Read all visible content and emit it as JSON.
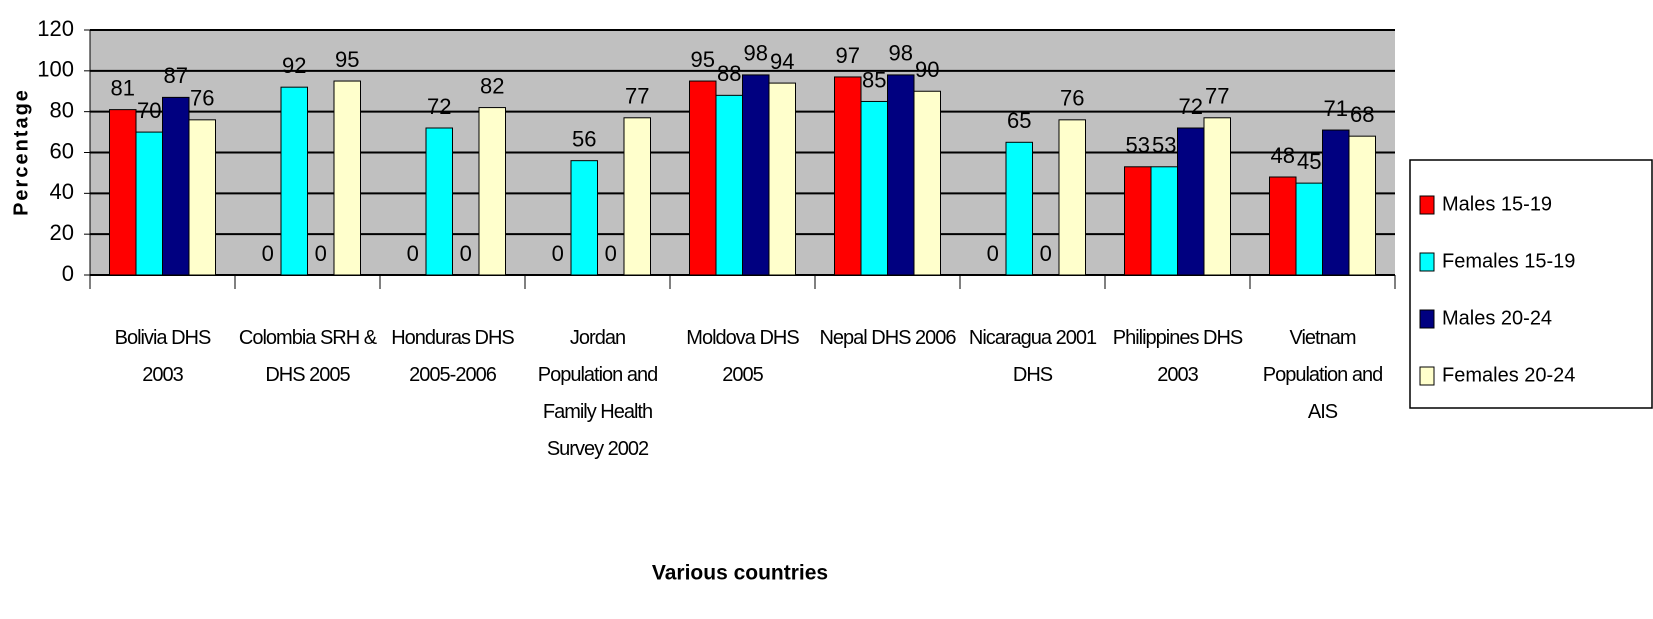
{
  "chart_data": {
    "type": "bar",
    "categories": [
      "Bolivia DHS 2003",
      "Colombia SRH & DHS 2005",
      "Honduras DHS 2005-2006",
      "Jordan Population and Family Health Survey 2002",
      "Moldova DHS 2005",
      "Nepal DHS 2006",
      "Nicaragua 2001 DHS",
      "Philippines DHS 2003",
      "Vietnam Population and AIS"
    ],
    "series": [
      {
        "name": "Males 15-19",
        "color": "#ff0000",
        "values": [
          81,
          0,
          0,
          0,
          95,
          97,
          0,
          53,
          48
        ]
      },
      {
        "name": "Females 15-19",
        "color": "#00ffff",
        "values": [
          70,
          92,
          72,
          56,
          88,
          85,
          65,
          53,
          45
        ]
      },
      {
        "name": "Males 20-24",
        "color": "#000080",
        "values": [
          87,
          0,
          0,
          0,
          98,
          98,
          0,
          72,
          71
        ]
      },
      {
        "name": "Females 20-24",
        "color": "#ffffcc",
        "values": [
          76,
          95,
          82,
          77,
          94,
          90,
          76,
          77,
          68
        ]
      }
    ],
    "ylabel": "Percentage",
    "xlabel": "Various countries",
    "ylim": [
      0,
      120
    ],
    "yticks": [
      0,
      20,
      40,
      60,
      80,
      100,
      120
    ],
    "grid": true,
    "legend": "right"
  }
}
